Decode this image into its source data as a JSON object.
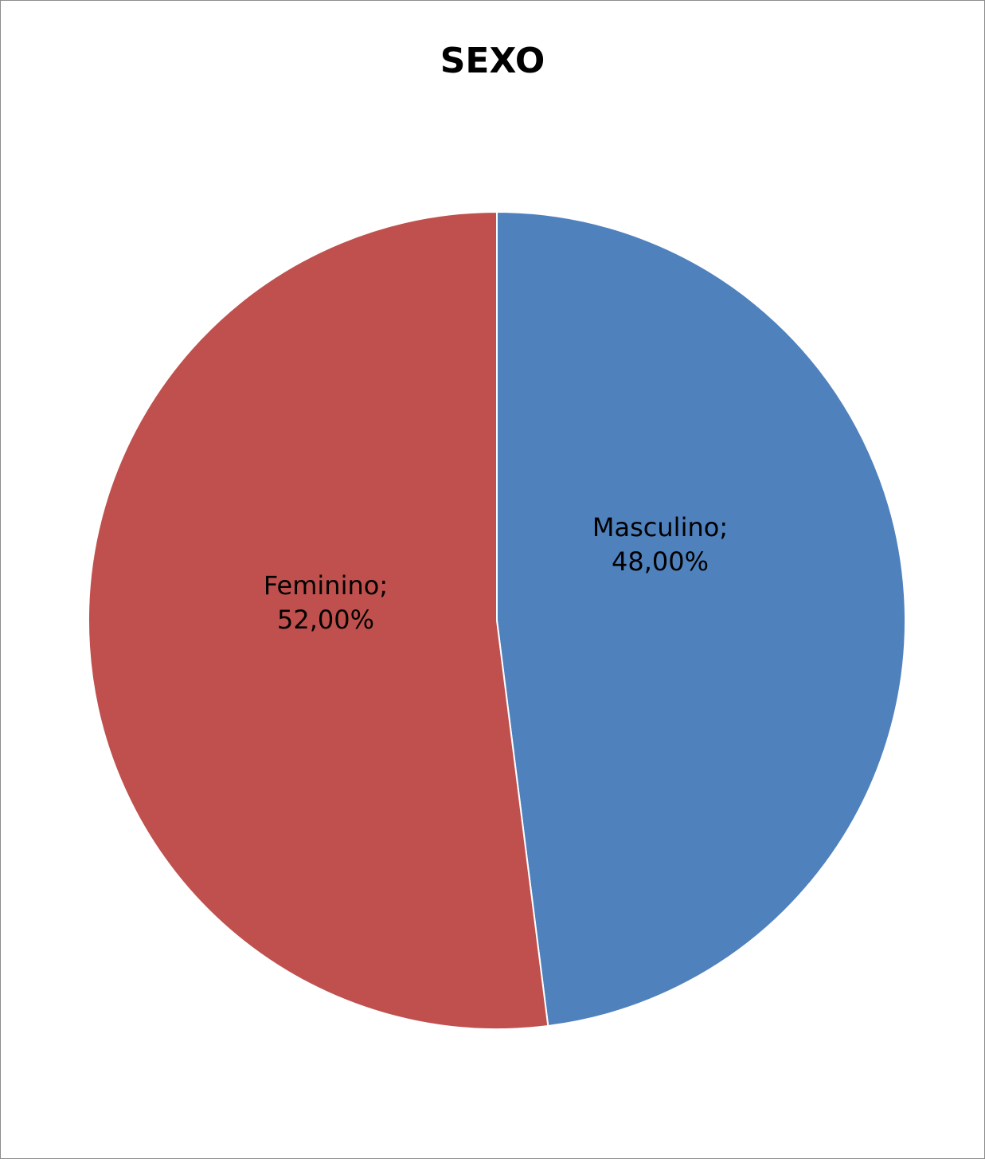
{
  "chart_data": {
    "type": "pie",
    "title": "SEXO",
    "slices": [
      {
        "name": "Masculino",
        "value": 48.0,
        "label_line1": "Masculino;",
        "label_line2": "48,00%",
        "color": "#4F81BD"
      },
      {
        "name": "Feminino",
        "value": 52.0,
        "label_line1": "Feminino;",
        "label_line2": "52,00%",
        "color": "#C0504D"
      }
    ],
    "start_angle": "12 o'clock",
    "direction": "clockwise",
    "legend": "none"
  }
}
